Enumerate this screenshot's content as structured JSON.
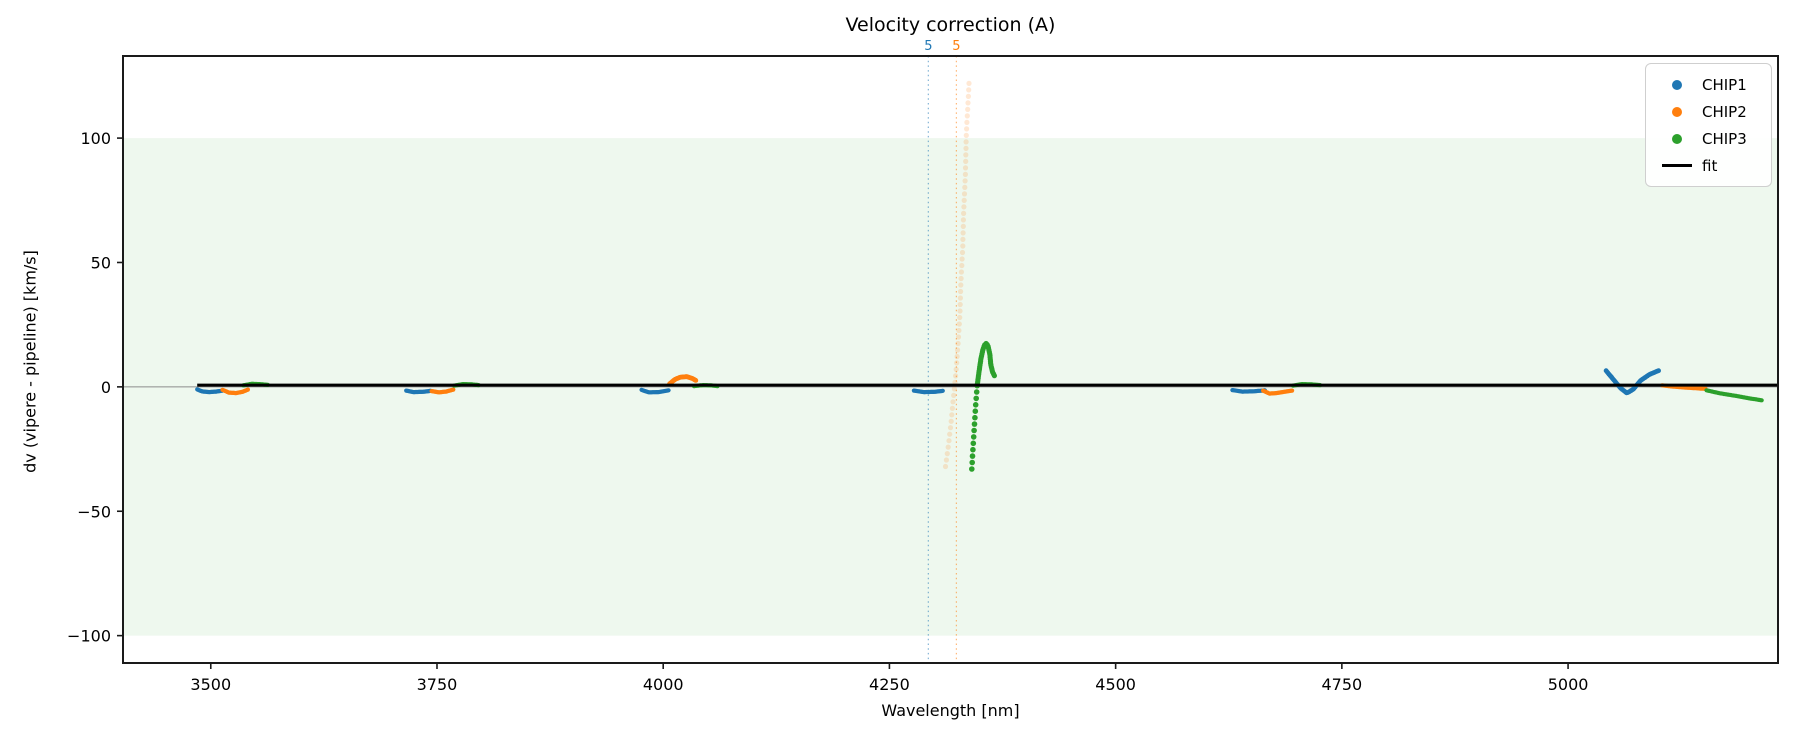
{
  "chart_data": {
    "type": "scatter",
    "title": "Velocity correction (A)",
    "xlabel": "Wavelength [nm]",
    "ylabel": "dv (vipere - pipeline) [km/s]",
    "xlim": [
      3403,
      5232
    ],
    "ylim": [
      -111,
      133
    ],
    "xticks": [
      3500,
      3750,
      4000,
      4250,
      4500,
      4750,
      5000
    ],
    "yticks": [
      -100,
      -50,
      0,
      50,
      100
    ],
    "grid": false,
    "legend_position": "upper right",
    "band": {
      "y0": -100,
      "y1": 100,
      "color": "rgba(44,160,44,0.08)"
    },
    "zero_line": {
      "y": 0,
      "color": "#8c8c8c",
      "width": 1
    },
    "fit_line": {
      "label": "fit",
      "color": "#000000",
      "width": 3,
      "x": [
        3485,
        5231
      ],
      "y": [
        0.7,
        0.7
      ]
    },
    "vlines": [
      {
        "x": 4293,
        "label": "5",
        "color": "#1f77b4"
      },
      {
        "x": 4324,
        "label": "5",
        "color": "#ff7f0e"
      }
    ],
    "series": [
      {
        "name": "CHIP1",
        "color": "#1f77b4",
        "segments": [
          {
            "n": 34,
            "pts": [
              [
                3485,
                -1.0
              ],
              [
                3490,
                -1.8
              ],
              [
                3498,
                -2.1
              ],
              [
                3506,
                -1.9
              ],
              [
                3513,
                -1.5
              ]
            ]
          },
          {
            "n": 30,
            "pts": [
              [
                3716,
                -1.5
              ],
              [
                3724,
                -2.1
              ],
              [
                3734,
                -2.0
              ],
              [
                3743,
                -1.6
              ]
            ]
          },
          {
            "n": 30,
            "pts": [
              [
                3976,
                -1.2
              ],
              [
                3984,
                -2.2
              ],
              [
                3995,
                -2.1
              ],
              [
                4006,
                -1.4
              ]
            ]
          },
          {
            "n": 32,
            "pts": [
              [
                4277,
                -1.5
              ],
              [
                4288,
                -2.1
              ],
              [
                4300,
                -2.0
              ],
              [
                4309,
                -1.6
              ]
            ]
          },
          {
            "n": 34,
            "pts": [
              [
                4629,
                -1.3
              ],
              [
                4640,
                -1.9
              ],
              [
                4652,
                -1.8
              ],
              [
                4665,
                -1.4
              ]
            ]
          },
          {
            "n": 52,
            "size": 2.4,
            "pts": [
              [
                5042,
                6.5
              ],
              [
                5050,
                3.0
              ],
              [
                5058,
                -0.5
              ],
              [
                5065,
                -2.5
              ],
              [
                5072,
                -1.0
              ],
              [
                5080,
                2.5
              ],
              [
                5090,
                5.0
              ],
              [
                5100,
                6.5
              ]
            ]
          }
        ]
      },
      {
        "name": "CHIP2",
        "color": "#ff7f0e",
        "segments": [
          {
            "n": 32,
            "pts": [
              [
                3513,
                -1.2
              ],
              [
                3520,
                -2.3
              ],
              [
                3528,
                -2.5
              ],
              [
                3535,
                -2.0
              ],
              [
                3541,
                -1.1
              ]
            ]
          },
          {
            "n": 28,
            "pts": [
              [
                3744,
                -1.7
              ],
              [
                3752,
                -2.2
              ],
              [
                3760,
                -1.9
              ],
              [
                3768,
                -1.1
              ]
            ]
          },
          {
            "n": 34,
            "size": 2.4,
            "pts": [
              [
                4007,
                1.2
              ],
              [
                4013,
                3.0
              ],
              [
                4019,
                3.9
              ],
              [
                4026,
                4.1
              ],
              [
                4032,
                3.4
              ],
              [
                4036,
                2.6
              ]
            ]
          },
          {
            "n": 60,
            "size": 2.6,
            "alpha": 0.18,
            "pts": [
              [
                4312,
                -32
              ],
              [
                4315,
                -24
              ],
              [
                4318,
                -15
              ],
              [
                4320,
                -7
              ],
              [
                4322,
                0
              ],
              [
                4324,
                8
              ],
              [
                4326,
                18
              ],
              [
                4328,
                30
              ],
              [
                4329,
                42
              ],
              [
                4331,
                56
              ],
              [
                4332,
                70
              ],
              [
                4334,
                86
              ],
              [
                4335,
                102
              ],
              [
                4337,
                115
              ],
              [
                4338,
                122
              ]
            ]
          },
          {
            "n": 34,
            "pts": [
              [
                4663,
                -1.5
              ],
              [
                4670,
                -2.7
              ],
              [
                4678,
                -2.5
              ],
              [
                4686,
                -2.0
              ],
              [
                4695,
                -1.5
              ]
            ]
          },
          {
            "n": 36,
            "pts": [
              [
                5104,
                0.6
              ],
              [
                5116,
                0.1
              ],
              [
                5130,
                -0.3
              ],
              [
                5143,
                -0.6
              ],
              [
                5152,
                -0.8
              ]
            ]
          }
        ]
      },
      {
        "name": "CHIP3",
        "color": "#2ca02c",
        "segments": [
          {
            "n": 30,
            "pts": [
              [
                3536,
                0.6
              ],
              [
                3545,
                1.2
              ],
              [
                3554,
                1.1
              ],
              [
                3563,
                0.8
              ]
            ]
          },
          {
            "n": 30,
            "pts": [
              [
                3769,
                0.5
              ],
              [
                3779,
                1.1
              ],
              [
                3788,
                1.0
              ],
              [
                3796,
                0.7
              ]
            ]
          },
          {
            "n": 28,
            "pts": [
              [
                4034,
                0.3
              ],
              [
                4044,
                0.7
              ],
              [
                4053,
                0.6
              ],
              [
                4060,
                0.3
              ]
            ]
          },
          {
            "n": 14,
            "size": 2.8,
            "pts": [
              [
                4341,
                -33
              ],
              [
                4342,
                -27
              ],
              [
                4343,
                -21
              ],
              [
                4344,
                -15
              ],
              [
                4345,
                -9
              ],
              [
                4346,
                -4
              ],
              [
                4347,
                0.5
              ]
            ]
          },
          {
            "n": 42,
            "size": 2.6,
            "pts": [
              [
                4347,
                0.5
              ],
              [
                4349,
                6
              ],
              [
                4351,
                11
              ],
              [
                4353,
                14.5
              ],
              [
                4355,
                16.8
              ],
              [
                4357,
                17.5
              ],
              [
                4359,
                16.5
              ],
              [
                4361,
                13
              ],
              [
                4362,
                9
              ],
              [
                4364,
                6
              ],
              [
                4366,
                4.5
              ]
            ]
          },
          {
            "n": 30,
            "pts": [
              [
                4696,
                0.5
              ],
              [
                4706,
                1.1
              ],
              [
                4716,
                1.0
              ],
              [
                4726,
                0.7
              ]
            ]
          },
          {
            "n": 42,
            "pts": [
              [
                5153,
                -1.4
              ],
              [
                5168,
                -2.6
              ],
              [
                5185,
                -3.6
              ],
              [
                5200,
                -4.6
              ],
              [
                5214,
                -5.4
              ]
            ]
          }
        ]
      }
    ]
  },
  "legend": {
    "entries": [
      "CHIP1",
      "CHIP2",
      "CHIP3",
      "fit"
    ]
  }
}
